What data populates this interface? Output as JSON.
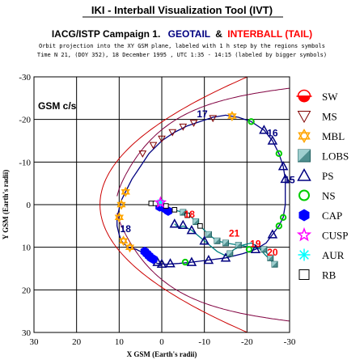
{
  "header": {
    "title": "IKI - Interball Visualization Tool (IVT)",
    "campaign": "IACG/ISTP Campaign 1.",
    "geotail": "GEOTAIL",
    "amp": "&",
    "interball": "INTERBALL (TAIL)",
    "line1": "Orbit projection into the XY GSM plane, labeled with 1 h step by the regions symbols",
    "line2": "Time N 21, (DOY 352), 18 December 1995 ,  UTC 1:35 - 14:15 (labeled by bigger symbols)"
  },
  "colors": {
    "geotail": "#000080",
    "interball": "#ff0000",
    "geotail_orbit": "#000080",
    "interball_orbit": "#008080",
    "bow_shock": "#cc0000",
    "magnetopause": "#800040"
  },
  "chart_data": {
    "type": "scatter",
    "plot_label": "GSM c/s",
    "xlabel": "X GSM (Earth's radii)",
    "ylabel": "Y GSM (Earth's radii)",
    "xlim": [
      30,
      -30
    ],
    "ylim": [
      -30,
      30
    ],
    "x_ticks": [
      "30",
      "20",
      "10",
      "0",
      "-10",
      "-20",
      "-30"
    ],
    "y_ticks": [
      "-30",
      "-20",
      "-10",
      "0",
      "10",
      "20",
      "30"
    ],
    "grid": true,
    "legend_position": "right",
    "legend": [
      {
        "key": "SW",
        "label": "SW",
        "icon": "bow-shock-semicircle-icon"
      },
      {
        "key": "MS",
        "label": "MS",
        "icon": "down-triangle-icon"
      },
      {
        "key": "MBL",
        "label": "MBL",
        "icon": "star-of-david-icon"
      },
      {
        "key": "LOBS",
        "label": "LOBS",
        "icon": "shaded-square-icon"
      },
      {
        "key": "PS",
        "label": "PS",
        "icon": "up-triangle-icon"
      },
      {
        "key": "NS",
        "label": "NS",
        "icon": "ring-icon"
      },
      {
        "key": "CAP",
        "label": "CAP",
        "icon": "filled-hexagon-icon"
      },
      {
        "key": "CUSP",
        "label": "CUSP",
        "icon": "pentagram-icon"
      },
      {
        "key": "AUR",
        "label": "AUR",
        "icon": "asterisk-icon"
      },
      {
        "key": "RB",
        "label": "RB",
        "icon": "open-square-icon"
      }
    ],
    "series": [
      {
        "name": "GEOTAIL",
        "points": [
          [
            5,
            11
          ],
          [
            6,
            10.5
          ],
          [
            8,
            10
          ],
          [
            9.5,
            8.5
          ],
          [
            10,
            7
          ],
          [
            10.5,
            5
          ],
          [
            10.5,
            3
          ],
          [
            10,
            1
          ],
          [
            9.5,
            -1
          ],
          [
            8.5,
            -3
          ],
          [
            7,
            -6
          ],
          [
            5,
            -9
          ],
          [
            3,
            -12
          ],
          [
            0,
            -15
          ],
          [
            -3,
            -17
          ],
          [
            -6,
            -18.5
          ],
          [
            -9,
            -19.5
          ],
          [
            -12,
            -20.5
          ],
          [
            -15,
            -21
          ],
          [
            -18,
            -20.5
          ],
          [
            -21,
            -19.5
          ],
          [
            -24,
            -17.5
          ],
          [
            -26,
            -15
          ],
          [
            -27.5,
            -12
          ],
          [
            -28.5,
            -9
          ],
          [
            -29,
            -6
          ],
          [
            -29,
            -3
          ],
          [
            -29,
            0
          ],
          [
            -28.5,
            3
          ],
          [
            -27.5,
            5
          ],
          [
            -26,
            7
          ],
          [
            -24.5,
            9
          ],
          [
            -22,
            10.5
          ],
          [
            -19,
            11.5
          ],
          [
            -15,
            12.5
          ],
          [
            -11,
            13
          ],
          [
            -7,
            13.5
          ],
          [
            -4,
            13.8
          ],
          [
            -1,
            14
          ],
          [
            1,
            13.8
          ],
          [
            3,
            12.8
          ],
          [
            5,
            11
          ]
        ]
      },
      {
        "name": "INTERBALL",
        "points": [
          [
            2,
            0
          ],
          [
            0,
            0.3
          ],
          [
            -2,
            1
          ],
          [
            -5,
            1.8
          ],
          [
            -7,
            3
          ],
          [
            -9,
            5
          ],
          [
            -11,
            7
          ],
          [
            -13,
            8.5
          ],
          [
            -15,
            9
          ],
          [
            -18,
            9.5
          ],
          [
            -21,
            10
          ],
          [
            -24,
            10.5
          ],
          [
            -25.5,
            12.5
          ],
          [
            -26.5,
            14
          ],
          [
            -25.5,
            13
          ],
          [
            -24,
            11.5
          ],
          [
            -22.5,
            9.8
          ],
          [
            -21,
            9
          ],
          [
            -19,
            9.5
          ],
          [
            -17,
            10.5
          ],
          [
            -15,
            12
          ],
          [
            -13,
            11
          ],
          [
            -10,
            8.5
          ],
          [
            -7,
            6
          ],
          [
            -5,
            5
          ],
          [
            -4,
            5.5
          ],
          [
            -3,
            4.5
          ]
        ]
      }
    ],
    "hour_labels": [
      {
        "text": "17",
        "x": -9.5,
        "y": -20.5,
        "series": "GEOTAIL"
      },
      {
        "text": "16",
        "x": -26,
        "y": -16,
        "series": "GEOTAIL"
      },
      {
        "text": "15",
        "x": -30,
        "y": -5,
        "series": "GEOTAIL"
      },
      {
        "text": "18",
        "x": 8.5,
        "y": 6.5,
        "series": "GEOTAIL"
      },
      {
        "text": "18",
        "x": -6.5,
        "y": 3,
        "series": "INTERBALL"
      },
      {
        "text": "21",
        "x": -17,
        "y": 7.5,
        "series": "INTERBALL"
      },
      {
        "text": "19",
        "x": -22,
        "y": 10,
        "series": "INTERBALL"
      },
      {
        "text": "20",
        "x": -26,
        "y": 12,
        "series": "INTERBALL"
      }
    ],
    "markers": [
      {
        "type": "MS",
        "x": 4.5,
        "y": -12
      },
      {
        "type": "MS",
        "x": 2,
        "y": -14
      },
      {
        "type": "MS",
        "x": 0,
        "y": -15.5
      },
      {
        "type": "MS",
        "x": -2.5,
        "y": -17
      },
      {
        "type": "MS",
        "x": -5,
        "y": -18.3
      },
      {
        "type": "MS",
        "x": -7.5,
        "y": -19.2
      },
      {
        "type": "MS",
        "x": -12,
        "y": -20.3
      },
      {
        "type": "MBL",
        "x": 8.5,
        "y": -3
      },
      {
        "type": "MBL",
        "x": 9.5,
        "y": 0
      },
      {
        "type": "MBL",
        "x": 10,
        "y": 3
      },
      {
        "type": "MBL",
        "x": 9,
        "y": 8.5
      },
      {
        "type": "MBL",
        "x": 7.5,
        "y": 10
      },
      {
        "type": "MBL",
        "x": -16.5,
        "y": -20.8
      },
      {
        "type": "NS",
        "x": -21,
        "y": -19.5
      },
      {
        "type": "NS",
        "x": -27.5,
        "y": -12
      },
      {
        "type": "NS",
        "x": -28.5,
        "y": 3
      },
      {
        "type": "NS",
        "x": -27.5,
        "y": 5
      },
      {
        "type": "NS",
        "x": -20.5,
        "y": 10.5
      },
      {
        "type": "NS",
        "x": -5.5,
        "y": 13.5
      },
      {
        "type": "PS",
        "x": -24,
        "y": -17.5
      },
      {
        "type": "PS",
        "x": -26,
        "y": -15
      },
      {
        "type": "PS",
        "x": -28.5,
        "y": -9
      },
      {
        "type": "PS",
        "x": -29,
        "y": -6
      },
      {
        "type": "PS",
        "x": -26,
        "y": 7
      },
      {
        "type": "PS",
        "x": -22,
        "y": 10.5
      },
      {
        "type": "PS",
        "x": -15,
        "y": 12.5
      },
      {
        "type": "PS",
        "x": -11,
        "y": 13
      },
      {
        "type": "PS",
        "x": -7,
        "y": 13.5
      },
      {
        "type": "PS",
        "x": -2,
        "y": 13.8
      },
      {
        "type": "PS",
        "x": 0,
        "y": 13.9
      },
      {
        "type": "PS",
        "x": 1,
        "y": 13.5
      },
      {
        "type": "PS",
        "x": -3,
        "y": 4.5
      },
      {
        "type": "PS",
        "x": -5,
        "y": 4.8
      },
      {
        "type": "PS",
        "x": -7,
        "y": 6
      },
      {
        "type": "PS",
        "x": -10,
        "y": 8.5
      },
      {
        "type": "CAP",
        "x": 3,
        "y": 12
      },
      {
        "type": "CAP",
        "x": 3.5,
        "y": 11.5
      },
      {
        "type": "CAP",
        "x": 2.5,
        "y": 12.5
      },
      {
        "type": "CAP",
        "x": 2,
        "y": 12.8
      },
      {
        "type": "CAP",
        "x": 4,
        "y": 11
      },
      {
        "type": "CAP",
        "x": 0.5,
        "y": 0.5
      },
      {
        "type": "CAP",
        "x": -0.5,
        "y": 0.8
      },
      {
        "type": "CAP",
        "x": -1.5,
        "y": 1.5
      },
      {
        "type": "LOBS",
        "x": -5,
        "y": 1.8
      },
      {
        "type": "LOBS",
        "x": -8,
        "y": 4
      },
      {
        "type": "LOBS",
        "x": -11,
        "y": 7
      },
      {
        "type": "LOBS",
        "x": -13,
        "y": 8.5
      },
      {
        "type": "LOBS",
        "x": -15,
        "y": 9
      },
      {
        "type": "LOBS",
        "x": -18,
        "y": 9.5
      },
      {
        "type": "LOBS",
        "x": -24,
        "y": 10.5
      },
      {
        "type": "LOBS",
        "x": -25.5,
        "y": 12.5
      },
      {
        "type": "LOBS",
        "x": -26.5,
        "y": 14
      },
      {
        "type": "LOBS",
        "x": -16,
        "y": 11.5
      },
      {
        "type": "RB",
        "x": 2.5,
        "y": -0.3
      },
      {
        "type": "RB",
        "x": 1.5,
        "y": -0.3
      },
      {
        "type": "RB",
        "x": -1,
        "y": 0.3
      },
      {
        "type": "RB",
        "x": -3,
        "y": 1.2
      },
      {
        "type": "RB",
        "x": -6,
        "y": 2.5
      },
      {
        "type": "RB",
        "x": -9,
        "y": 5
      },
      {
        "type": "AUR",
        "x": 0.3,
        "y": -0.5
      },
      {
        "type": "CUSP",
        "x": 0.3,
        "y": -0.5
      }
    ]
  }
}
